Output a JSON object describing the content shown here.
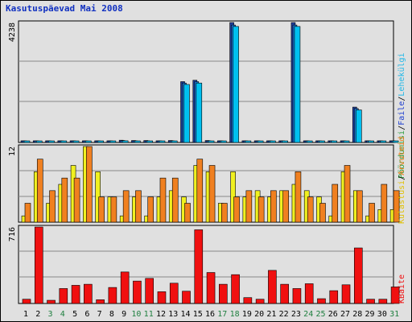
{
  "title": "Kasutuspäevad Mai 2008",
  "colors": {
    "background": "#e0e0e0",
    "title": "#1030c0",
    "pages": "#2040a0",
    "files": "#1878d8",
    "hits": "#00c0f0",
    "visits": "#f0f020",
    "visitors": "#f08020",
    "kbytes": "#f01010",
    "weekday_label": "#000000",
    "weekend_label": "#208040"
  },
  "legend": {
    "top": [
      {
        "text": "Pöördumisi",
        "color": "#30a040"
      },
      {
        "text": "/",
        "color": "#000000"
      },
      {
        "text": "Faile",
        "color": "#2040d0"
      },
      {
        "text": "/",
        "color": "#000000"
      },
      {
        "text": "Lehekülgi",
        "color": "#20b8e8"
      }
    ],
    "middle": [
      {
        "text": "Külastusi",
        "color": "#e0c000"
      },
      {
        "text": "/",
        "color": "#000000"
      },
      {
        "text": "Arvuteid",
        "color": "#f08020"
      }
    ],
    "bottom": [
      {
        "text": "KBaite",
        "color": "#f01010"
      }
    ]
  },
  "chart_data": [
    {
      "type": "bar",
      "panel": "hits-files-pages",
      "ymax_label": "4238",
      "ylim": [
        0,
        4238
      ],
      "categories": [
        "1",
        "2",
        "3",
        "4",
        "5",
        "6",
        "7",
        "8",
        "9",
        "10",
        "11",
        "12",
        "13",
        "14",
        "15",
        "16",
        "17",
        "18",
        "19",
        "20",
        "21",
        "22",
        "23",
        "24",
        "25",
        "26",
        "27",
        "28",
        "29",
        "30",
        "31"
      ],
      "series": [
        {
          "name": "Pöördumisi",
          "values": [
            60,
            60,
            60,
            60,
            60,
            60,
            60,
            60,
            80,
            70,
            70,
            60,
            70,
            2150,
            2200,
            70,
            60,
            4238,
            60,
            60,
            60,
            60,
            4238,
            60,
            60,
            60,
            60,
            1250,
            60,
            60,
            60
          ]
        },
        {
          "name": "Faile",
          "values": [
            50,
            50,
            50,
            50,
            50,
            50,
            50,
            50,
            70,
            60,
            60,
            50,
            60,
            2100,
            2150,
            60,
            50,
            4150,
            50,
            50,
            50,
            50,
            4150,
            50,
            50,
            50,
            50,
            1200,
            50,
            50,
            50
          ]
        },
        {
          "name": "Lehekülgi",
          "values": [
            40,
            40,
            40,
            40,
            40,
            40,
            40,
            40,
            60,
            50,
            50,
            40,
            50,
            2050,
            2100,
            50,
            40,
            4100,
            40,
            40,
            40,
            40,
            4100,
            40,
            40,
            40,
            40,
            1150,
            40,
            40,
            40
          ]
        }
      ]
    },
    {
      "type": "bar",
      "panel": "visits-visitors",
      "ymax_label": "12",
      "ylim": [
        0,
        12
      ],
      "categories": [
        "1",
        "2",
        "3",
        "4",
        "5",
        "6",
        "7",
        "8",
        "9",
        "10",
        "11",
        "12",
        "13",
        "14",
        "15",
        "16",
        "17",
        "18",
        "19",
        "20",
        "21",
        "22",
        "23",
        "24",
        "25",
        "26",
        "27",
        "28",
        "29",
        "30",
        "31"
      ],
      "series": [
        {
          "name": "Külastusi",
          "values": [
            1,
            8,
            3,
            6,
            9,
            12,
            8,
            4,
            1,
            4,
            1,
            4,
            5,
            4,
            9,
            8,
            3,
            8,
            4,
            5,
            4,
            5,
            6,
            5,
            4,
            1,
            8,
            5,
            1,
            2,
            2
          ]
        },
        {
          "name": "Arvuteid",
          "values": [
            3,
            10,
            5,
            7,
            7,
            12,
            4,
            4,
            5,
            5,
            4,
            7,
            7,
            3,
            10,
            9,
            3,
            4,
            5,
            4,
            5,
            5,
            8,
            4,
            3,
            6,
            9,
            5,
            3,
            6,
            5
          ]
        }
      ]
    },
    {
      "type": "bar",
      "panel": "kbytes",
      "ymax_label": "716",
      "ylim": [
        0,
        716
      ],
      "categories": [
        "1",
        "2",
        "3",
        "4",
        "5",
        "6",
        "7",
        "8",
        "9",
        "10",
        "11",
        "12",
        "13",
        "14",
        "15",
        "16",
        "17",
        "18",
        "19",
        "20",
        "21",
        "22",
        "23",
        "24",
        "25",
        "26",
        "27",
        "28",
        "29",
        "30",
        "31"
      ],
      "series": [
        {
          "name": "KBaite",
          "values": [
            40,
            716,
            30,
            140,
            170,
            180,
            35,
            150,
            295,
            210,
            235,
            110,
            190,
            115,
            690,
            290,
            180,
            270,
            55,
            40,
            310,
            180,
            140,
            185,
            45,
            120,
            175,
            520,
            40,
            40,
            155
          ]
        }
      ]
    }
  ],
  "weekend_days": [
    "3",
    "4",
    "10",
    "11",
    "17",
    "18",
    "24",
    "25",
    "31"
  ]
}
